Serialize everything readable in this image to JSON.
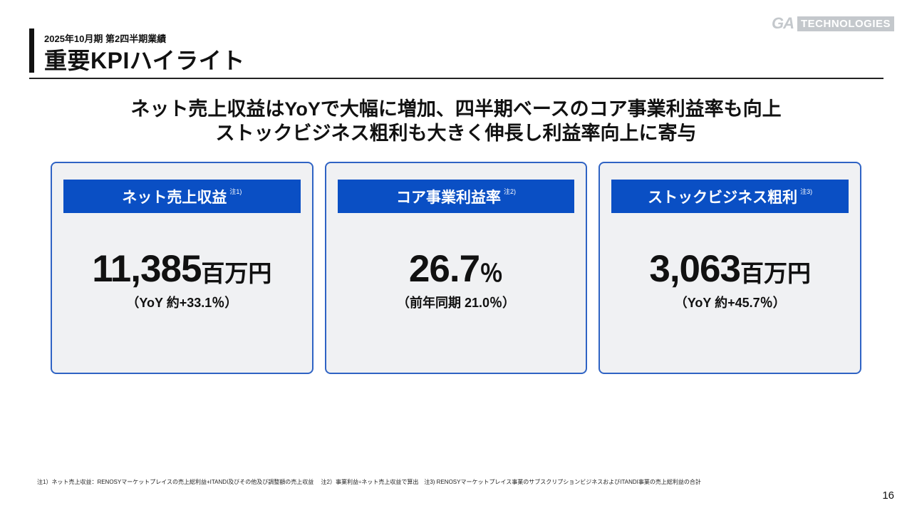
{
  "logo": {
    "ga": "GA",
    "technologies": "TECHNOLOGIES"
  },
  "header": {
    "subtitle": "2025年10月期 第2四半期業績",
    "title": "重要KPIハイライト"
  },
  "headline": {
    "line1": "ネット売上収益はYoYで大幅に増加、四半期ベースのコア事業利益率も向上",
    "line2": "ストックビジネス粗利も大きく伸長し利益率向上に寄与"
  },
  "cards": [
    {
      "title": "ネット売上収益",
      "note": "注1)",
      "value": "11,385",
      "unit": "百万円",
      "sub": "（YoY 約+33.1％）"
    },
    {
      "title": "コア事業利益率",
      "note": "注2)",
      "value": "26.7",
      "unit": "％",
      "sub": "（前年同期 21.0％）"
    },
    {
      "title": "ストックビジネス粗利",
      "note": "注3)",
      "value": "3,063",
      "unit": "百万円",
      "sub": "（YoY 約+45.7％）"
    }
  ],
  "footnote": "注1）ネット売上収益：RENOSYマーケットプレイスの売上総利益+ITANDI及びその他及び調整額の売上収益　 注2）事業利益÷ネット売上収益で算出　注3) RENOSYマーケットプレイス事業のサブスクリプションビジネスおよびITANDI事業の売上総利益の合計",
  "page_number": "16",
  "colors": {
    "accent": "#0a4fc4",
    "card_border": "#2f63c4",
    "card_bg": "#f0f1f3"
  }
}
